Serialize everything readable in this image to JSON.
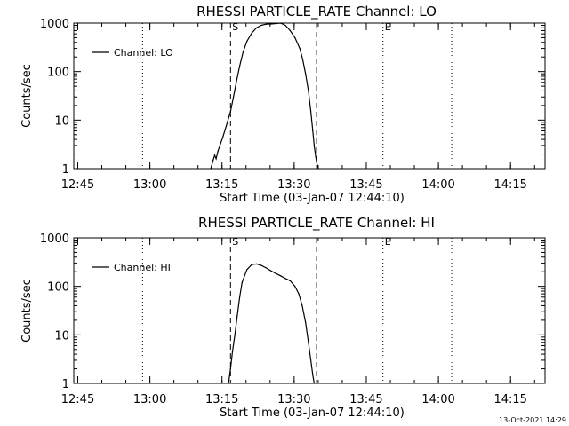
{
  "chart_data": [
    {
      "type": "line",
      "title": "RHESSI PARTICLE_RATE Channel: LO",
      "xlabel": "Start Time (03-Jan-07 12:44:10)",
      "ylabel": "Counts/sec",
      "yscale": "log",
      "ylim": [
        1,
        1000
      ],
      "y_ticks": [
        1,
        10,
        100,
        1000
      ],
      "y_tick_labels": [
        "1",
        "10",
        "100",
        "1000"
      ],
      "x_ticks": [
        "12:45",
        "13:00",
        "13:15",
        "13:30",
        "13:45",
        "14:00",
        "14:15"
      ],
      "x_tick_minutes": [
        0.83,
        15.83,
        30.83,
        45.83,
        60.83,
        75.83,
        90.83
      ],
      "xlim_minutes": [
        0,
        98
      ],
      "grid": false,
      "legend": {
        "placement": "top-left",
        "entries": [
          "Channel: LO"
        ]
      },
      "dashed_markers": [
        {
          "minutes": 32.6,
          "label": "S"
        },
        {
          "minutes": 50.5,
          "label": ""
        }
      ],
      "dotted_markers": [
        {
          "minutes": 14.3,
          "label": ""
        },
        {
          "minutes": 64.3,
          "label": "E"
        },
        {
          "minutes": 78.6,
          "label": ""
        }
      ],
      "series": [
        {
          "name": "Channel: LO",
          "x_minutes": [
            28.5,
            29.0,
            29.3,
            29.6,
            30.0,
            30.5,
            31.0,
            31.5,
            32.0,
            32.6,
            33.2,
            33.8,
            34.5,
            35.2,
            36.0,
            37.0,
            38.0,
            39.0,
            40.0,
            41.0,
            42.0,
            43.0,
            44.0,
            45.0,
            46.0,
            47.0,
            47.6,
            48.2,
            48.8,
            49.3,
            49.7,
            50.0,
            50.3,
            50.6,
            50.9
          ],
          "y": [
            1.0,
            1.5,
            1.9,
            1.6,
            2.3,
            3.2,
            4.5,
            6.5,
            9.5,
            15,
            30,
            60,
            130,
            250,
            420,
            620,
            800,
            900,
            950,
            960,
            980,
            1000,
            900,
            700,
            500,
            300,
            180,
            90,
            40,
            15,
            6,
            3,
            1.8,
            1.2,
            1.0
          ]
        }
      ]
    },
    {
      "type": "line",
      "title": "RHESSI PARTICLE_RATE Channel: HI",
      "xlabel": "Start Time (03-Jan-07 12:44:10)",
      "ylabel": "Counts/sec",
      "yscale": "log",
      "ylim": [
        1,
        1000
      ],
      "y_ticks": [
        1,
        10,
        100,
        1000
      ],
      "y_tick_labels": [
        "1",
        "10",
        "100",
        "1000"
      ],
      "x_ticks": [
        "12:45",
        "13:00",
        "13:15",
        "13:30",
        "13:45",
        "14:00",
        "14:15"
      ],
      "x_tick_minutes": [
        0.83,
        15.83,
        30.83,
        45.83,
        60.83,
        75.83,
        90.83
      ],
      "xlim_minutes": [
        0,
        98
      ],
      "grid": false,
      "legend": {
        "placement": "top-left",
        "entries": [
          "Channel: HI"
        ]
      },
      "dashed_markers": [
        {
          "minutes": 32.6,
          "label": "S"
        },
        {
          "minutes": 50.5,
          "label": ""
        }
      ],
      "dotted_markers": [
        {
          "minutes": 14.3,
          "label": ""
        },
        {
          "minutes": 64.3,
          "label": "E"
        },
        {
          "minutes": 78.6,
          "label": ""
        }
      ],
      "series": [
        {
          "name": "Channel: HI",
          "x_minutes": [
            32.2,
            32.6,
            33.0,
            33.5,
            34.0,
            34.5,
            35.0,
            36.0,
            37.0,
            38.0,
            39.0,
            40.0,
            41.0,
            42.0,
            43.0,
            44.0,
            45.0,
            46.0,
            46.8,
            47.5,
            48.2,
            48.8,
            49.3,
            49.7,
            50.0
          ],
          "y": [
            1.0,
            2.0,
            4.5,
            10,
            25,
            60,
            120,
            220,
            280,
            290,
            270,
            240,
            210,
            185,
            165,
            145,
            130,
            100,
            70,
            40,
            18,
            7,
            3,
            1.5,
            1.0
          ]
        }
      ]
    }
  ],
  "footer": {
    "timestamp": "13-Oct-2021 14:29"
  }
}
